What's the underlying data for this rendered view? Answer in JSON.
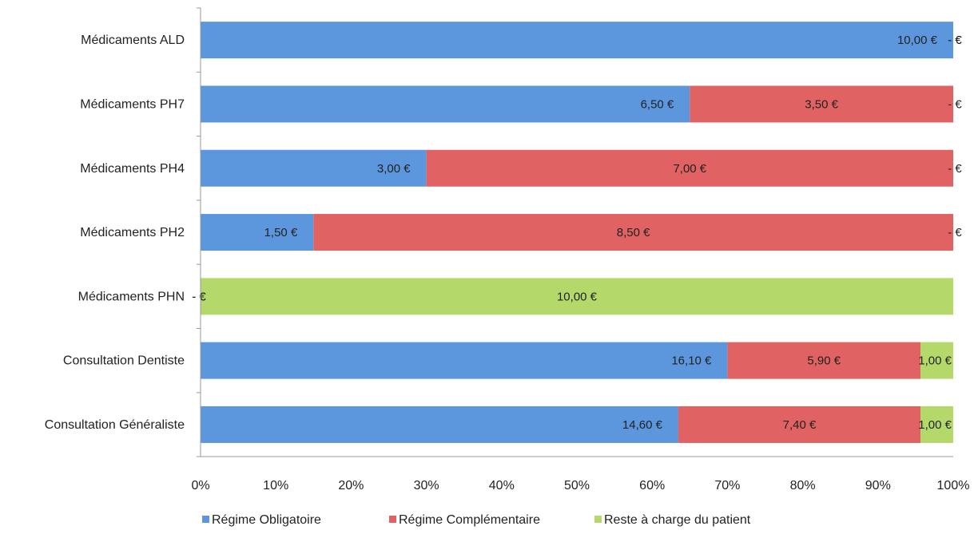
{
  "colors": {
    "blue": "#5C97DE",
    "red": "#E06262",
    "green": "#B4D96A",
    "axis": "#999999",
    "text": "#222222"
  },
  "chart_data": {
    "type": "bar",
    "orientation": "horizontal",
    "stacked": "percent",
    "title": "",
    "xlabel": "",
    "ylabel": "",
    "xlim": [
      0,
      100
    ],
    "x_ticks": [
      "0%",
      "10%",
      "20%",
      "30%",
      "40%",
      "50%",
      "60%",
      "70%",
      "80%",
      "90%",
      "100%"
    ],
    "grid": false,
    "legend_position": "bottom",
    "categories": [
      "Médicaments ALD",
      "Médicaments PH7",
      "Médicaments PH4",
      "Médicaments PH2",
      "Médicaments PHN",
      "Consultation Dentiste",
      "Consultation Généraliste"
    ],
    "series": [
      {
        "name": "Régime Obligatoire",
        "color": "#5C97DE",
        "values": [
          10.0,
          6.5,
          3.0,
          1.5,
          0,
          16.1,
          14.6
        ],
        "labels": [
          "10,00 €",
          "6,50 €",
          "3,00 €",
          "1,50 €",
          "- €",
          "16,10 €",
          "14,60 €"
        ]
      },
      {
        "name": "Régime Complémentaire",
        "color": "#E06262",
        "values": [
          0,
          3.5,
          7.0,
          8.5,
          0,
          5.9,
          7.4
        ],
        "labels": [
          "- €",
          "3,50 €",
          "7,00 €",
          "8,50 €",
          "- €",
          "5,90 €",
          "7,40 €"
        ]
      },
      {
        "name": "Reste à charge du patient",
        "color": "#B4D96A",
        "values": [
          0,
          0,
          0,
          0,
          10.0,
          1.0,
          1.0
        ],
        "labels": [
          "- €",
          "- €",
          "- €",
          "- €",
          "10,00 €",
          "1,00 €",
          "1,00 €"
        ]
      }
    ]
  }
}
